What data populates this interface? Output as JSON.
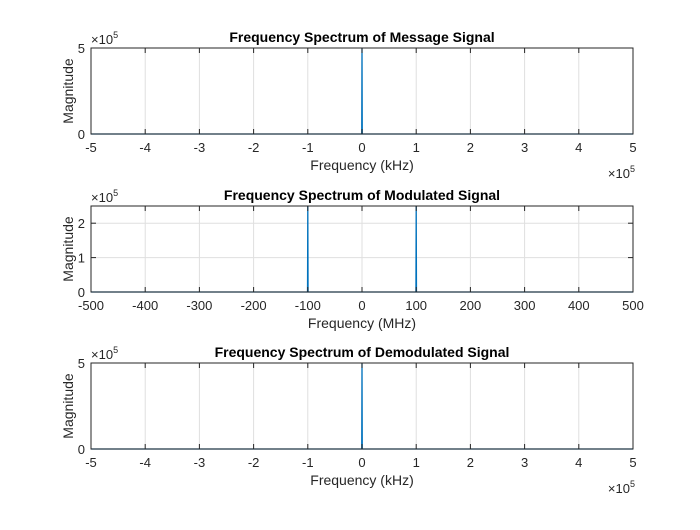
{
  "colors": {
    "line": "#0072BD",
    "grid": "#DFDFDF",
    "axis": "#262626",
    "background": "#FFFFFF"
  },
  "chart_data": [
    {
      "type": "line",
      "title": "Frequency Spectrum of Message Signal",
      "xlabel": "Frequency (kHz)",
      "ylabel": "Magnitude",
      "xlim": [
        -5,
        5
      ],
      "ylim": [
        0,
        5
      ],
      "xticks": [
        -5,
        -4,
        -3,
        -2,
        -1,
        0,
        1,
        2,
        3,
        4,
        5
      ],
      "yticks": [
        0,
        5
      ],
      "x_multiplier": "×10",
      "x_multiplier_exp": "5",
      "y_multiplier": "×10",
      "y_multiplier_exp": "5",
      "grid": true,
      "series": [
        {
          "x": [
            -5,
            -0.005,
            0,
            0.005,
            5
          ],
          "y": [
            0,
            0,
            5,
            0,
            0
          ]
        }
      ]
    },
    {
      "type": "line",
      "title": "Frequency Spectrum of Modulated Signal",
      "xlabel": "Frequency (MHz)",
      "ylabel": "Magnitude",
      "xlim": [
        -500,
        500
      ],
      "ylim": [
        0,
        2.5
      ],
      "xticks": [
        -500,
        -400,
        -300,
        -200,
        -100,
        0,
        100,
        200,
        300,
        400,
        500
      ],
      "yticks": [
        0,
        1,
        2
      ],
      "x_multiplier": "",
      "x_multiplier_exp": "",
      "y_multiplier": "×10",
      "y_multiplier_exp": "5",
      "grid": true,
      "series": [
        {
          "x": [
            -500,
            -100.5,
            -100,
            -99.5,
            99.5,
            100,
            100.5,
            500
          ],
          "y": [
            0,
            0,
            2.5,
            0,
            0,
            2.5,
            0,
            0
          ]
        }
      ]
    },
    {
      "type": "line",
      "title": "Frequency Spectrum of Demodulated Signal",
      "xlabel": "Frequency (kHz)",
      "ylabel": "Magnitude",
      "xlim": [
        -5,
        5
      ],
      "ylim": [
        0,
        5
      ],
      "xticks": [
        -5,
        -4,
        -3,
        -2,
        -1,
        0,
        1,
        2,
        3,
        4,
        5
      ],
      "yticks": [
        0,
        5
      ],
      "x_multiplier": "×10",
      "x_multiplier_exp": "5",
      "y_multiplier": "×10",
      "y_multiplier_exp": "5",
      "grid": true,
      "series": [
        {
          "x": [
            -5,
            -0.005,
            0,
            0.005,
            5
          ],
          "y": [
            0,
            0,
            5,
            0,
            0
          ]
        }
      ]
    }
  ]
}
